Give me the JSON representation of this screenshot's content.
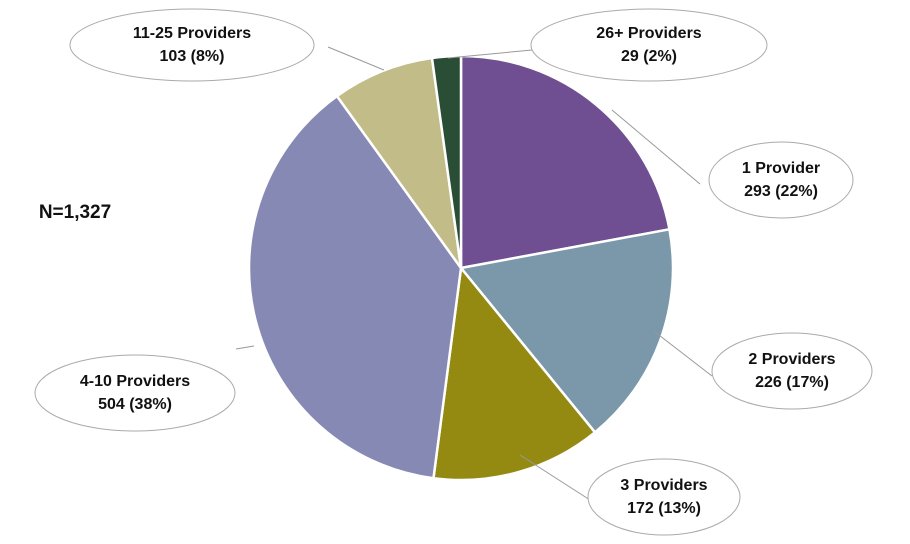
{
  "chart_data": {
    "type": "pie",
    "annotation": "N=1,327",
    "categories": [
      "1 Provider",
      "2 Providers",
      "3 Providers",
      "4-10 Providers",
      "11-25 Providers",
      "26+ Providers"
    ],
    "values": [
      293,
      226,
      172,
      504,
      103,
      29
    ],
    "value_labels": [
      "293 (22%)",
      "226 (17%)",
      "172 (13%)",
      "504 (38%)",
      "103 (8%)",
      "29 (2%)"
    ],
    "colors": [
      "#6f4e91",
      "#7a98aa",
      "#948a12",
      "#8689b3",
      "#c2bc88",
      "#2a4e35"
    ]
  }
}
